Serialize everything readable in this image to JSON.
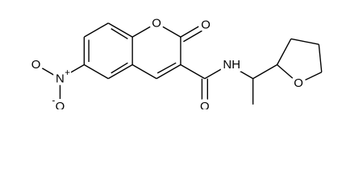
{
  "atoms": {
    "ring_oxygen": "O",
    "lactone_oxygen": "O",
    "nitro_nitrogen": "N",
    "nitro_charge": "+",
    "nitro_oxygen_upper": "O",
    "nitro_oxygen_lower": "O",
    "nitro_oxygen_charge": "-",
    "amide_oxygen": "O",
    "amide_nitrogen": "NH",
    "thf_oxygen": "O"
  }
}
